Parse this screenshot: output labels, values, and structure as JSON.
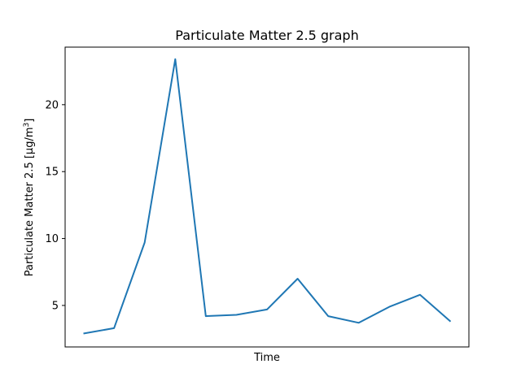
{
  "chart_data": {
    "type": "line",
    "title": "Particulate Matter 2.5 graph",
    "xlabel": "Time",
    "ylabel_main": "Particulate Matter 2.5 [μg/m",
    "ylabel_sup": "3",
    "ylabel_close": "]",
    "color": "#1f77b4",
    "ylim": [
      1.9,
      24.3
    ],
    "xticks_shown": false,
    "yticks": [
      5,
      10,
      15,
      20
    ],
    "ytick_labels": [
      "5",
      "10",
      "15",
      "20"
    ],
    "x": [
      0,
      1,
      2,
      3,
      4,
      5,
      6,
      7,
      8,
      9,
      10,
      11,
      12
    ],
    "values": [
      2.9,
      3.3,
      9.7,
      23.4,
      4.2,
      4.3,
      4.7,
      7.0,
      4.2,
      3.7,
      4.9,
      5.8,
      3.8
    ]
  }
}
